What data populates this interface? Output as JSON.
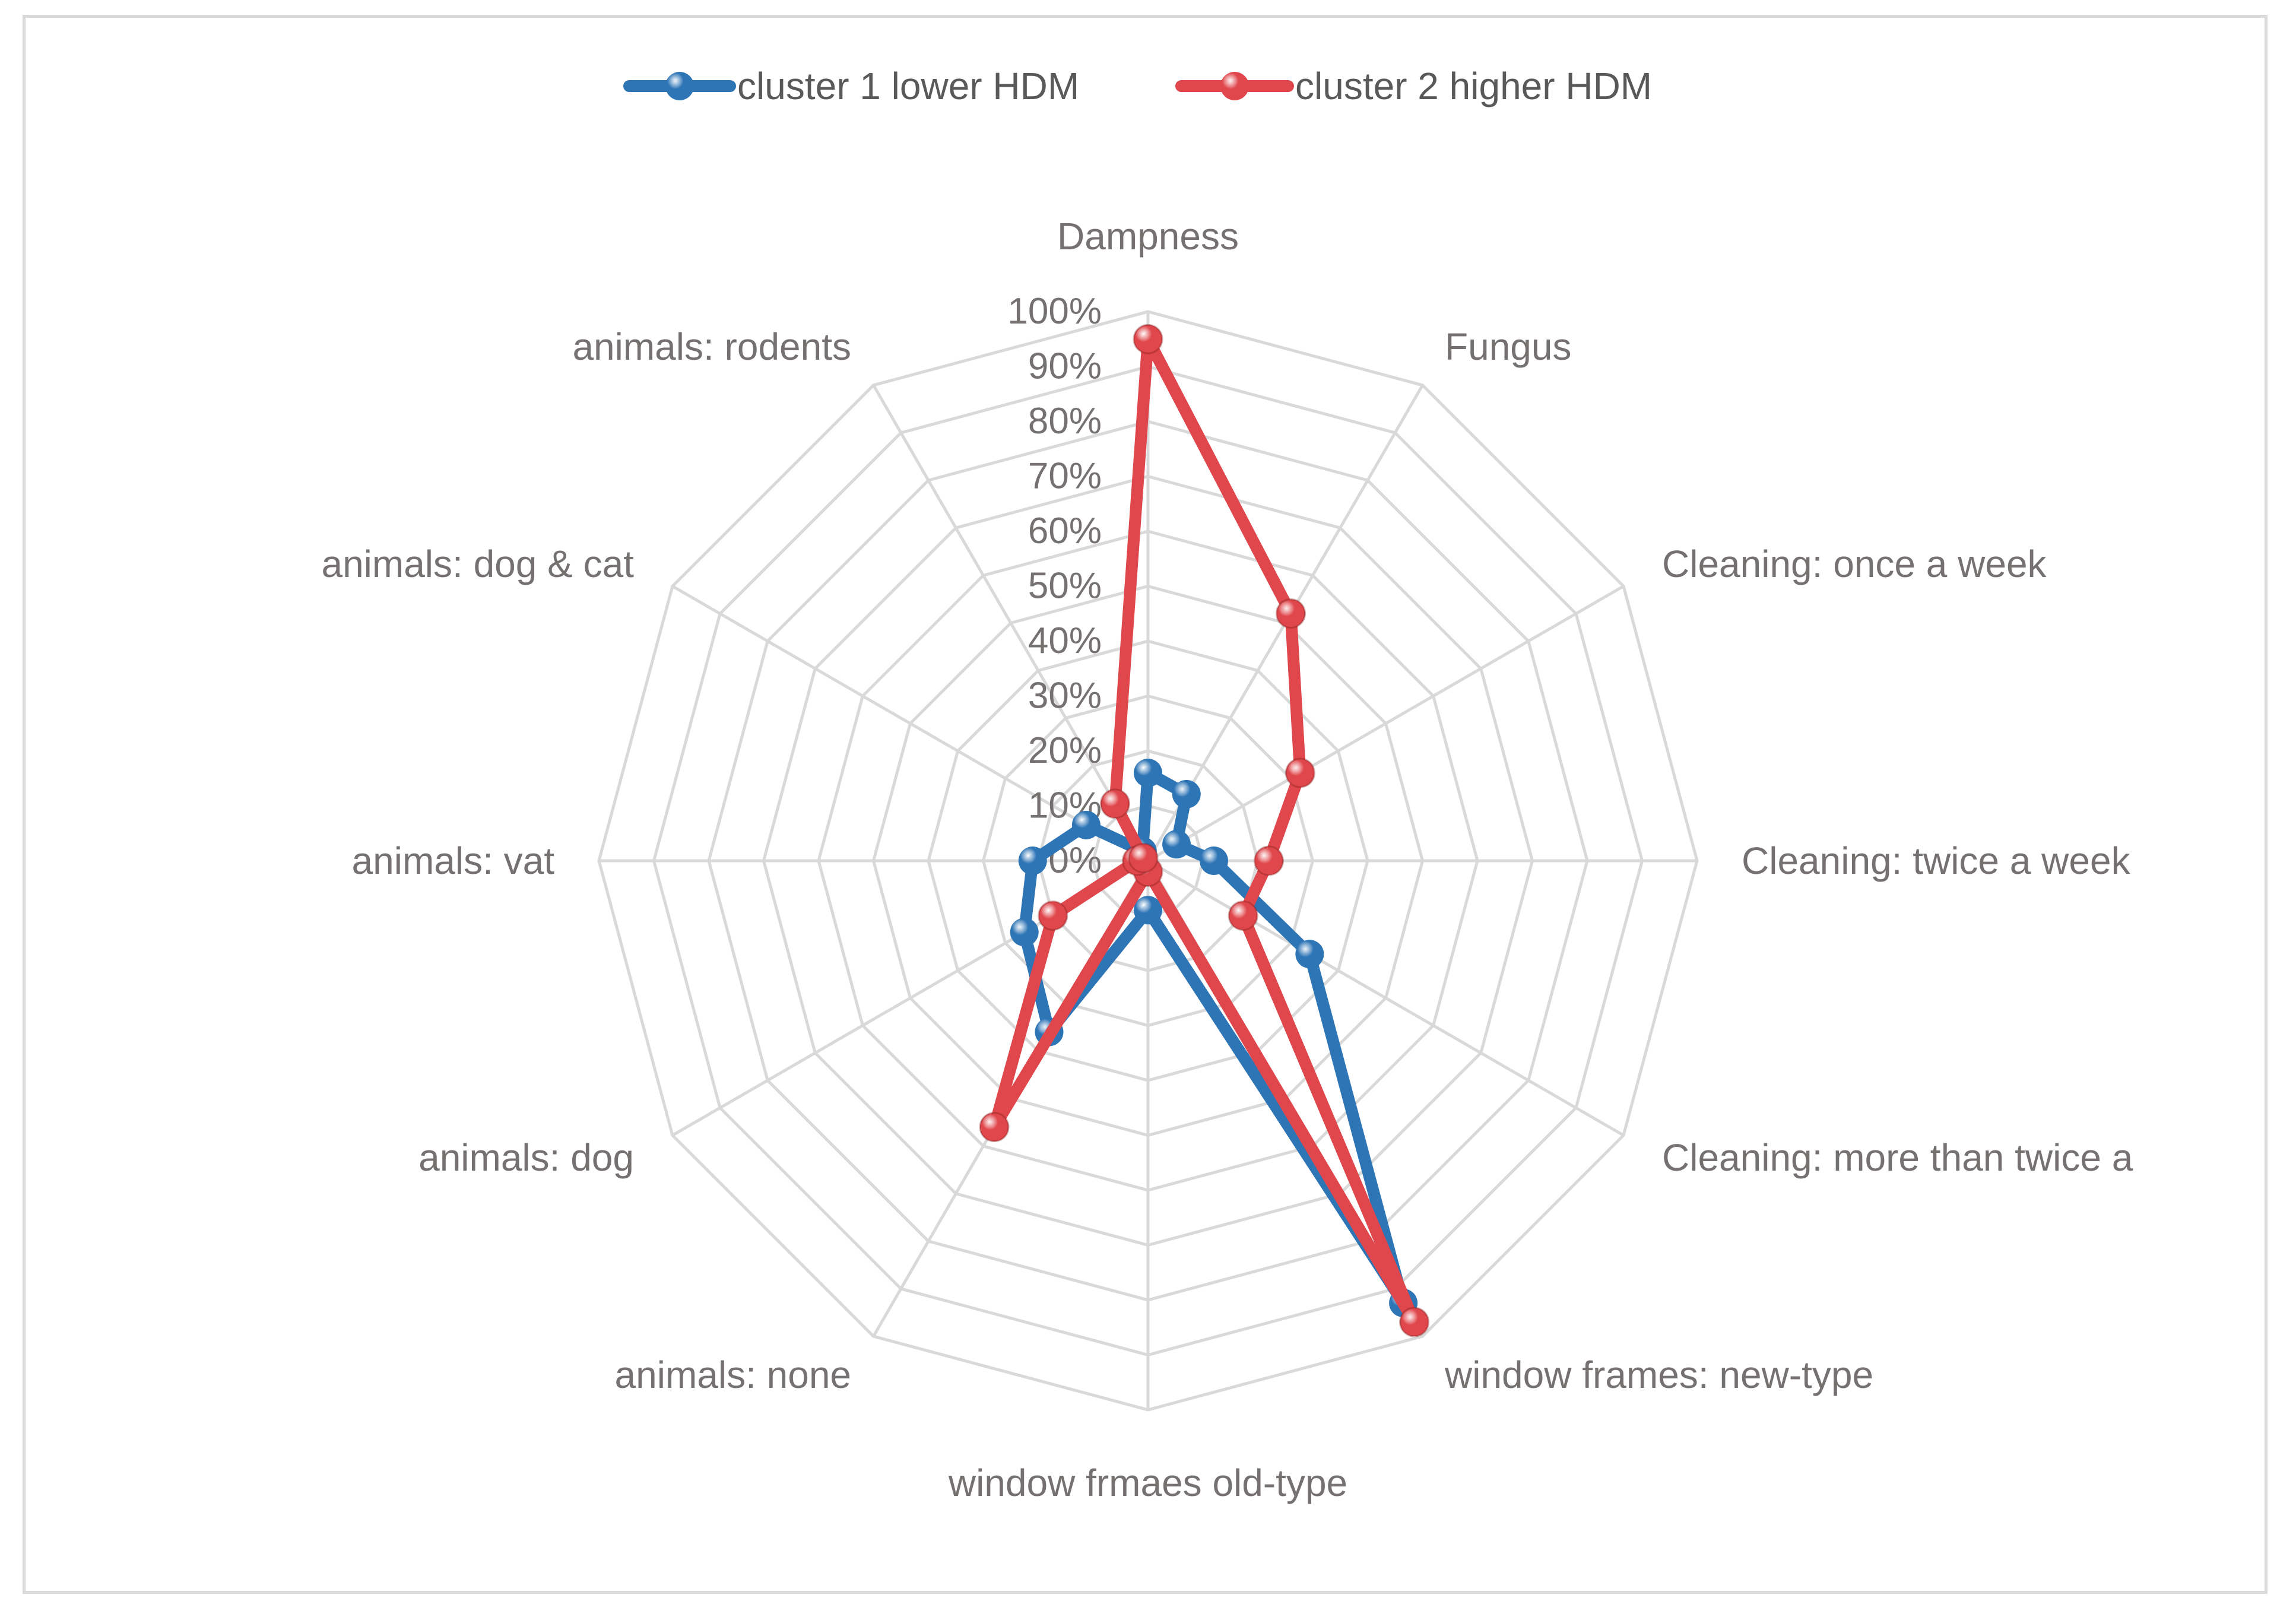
{
  "chart_data": {
    "type": "radar",
    "categories": [
      "Dampness",
      "Fungus",
      "Cleaning: once a week",
      "Cleaning: twice a week",
      "Cleaning: more than twice a",
      "window frames: new-type",
      "window frmaes old-type",
      "animals: none",
      "animals: dog",
      "animals: vat",
      "animals: dog & cat",
      "animals: rodents"
    ],
    "axis": {
      "min": 0,
      "max": 100,
      "step": 10,
      "tick_labels": [
        "0%",
        "10%",
        "20%",
        "30%",
        "40%",
        "50%",
        "60%",
        "70%",
        "80%",
        "90%",
        "100%"
      ]
    },
    "series": [
      {
        "name": "cluster 1 lower HDM",
        "color": "#2e75b6",
        "values": [
          16,
          14,
          6,
          12,
          34,
          93,
          9,
          36,
          26,
          21,
          13,
          2
        ]
      },
      {
        "name": "cluster 2 higher HDM",
        "color": "#e0474c",
        "values": [
          95,
          52,
          32,
          22,
          20,
          97,
          2,
          56,
          20,
          2,
          1,
          12
        ]
      }
    ],
    "legend": "top",
    "grid": true
  }
}
